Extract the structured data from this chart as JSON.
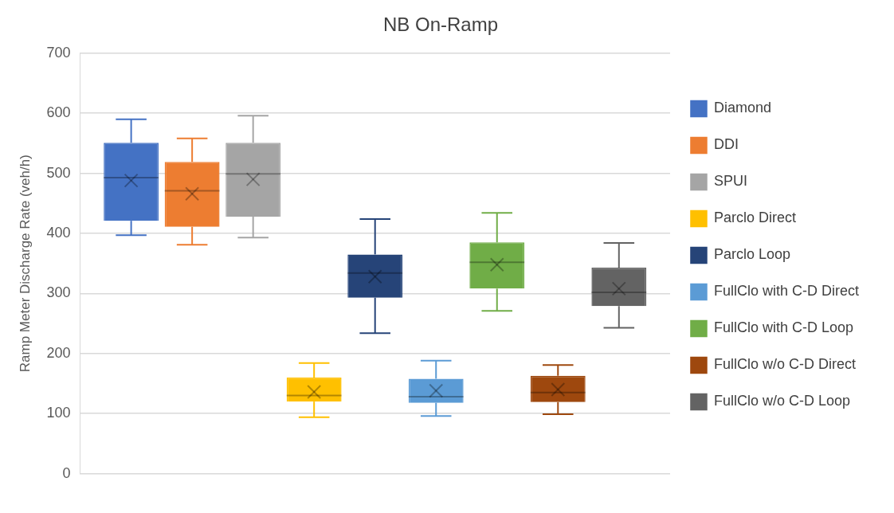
{
  "chart_data": {
    "type": "box",
    "title": "NB On-Ramp",
    "ylabel": "Ramp Meter Discharge Rate (veh/h)",
    "categories": [
      null
    ],
    "ylim": [
      0,
      700
    ],
    "yticks": [
      0,
      100,
      200,
      300,
      400,
      500,
      600,
      700
    ],
    "grid": "y",
    "legend": "right",
    "series": [
      {
        "name": "Diamond",
        "color": "#4472c4",
        "boxes": [
          {
            "low": 397,
            "q1": 421,
            "median": 493,
            "q3": 551,
            "high": 590,
            "mean": 488
          }
        ]
      },
      {
        "name": "DDI",
        "color": "#ed7d31",
        "boxes": [
          {
            "low": 381,
            "q1": 411,
            "median": 471,
            "q3": 519,
            "high": 558,
            "mean": 466
          }
        ]
      },
      {
        "name": "SPUI",
        "color": "#a5a5a5",
        "boxes": [
          {
            "low": 393,
            "q1": 428,
            "median": 499,
            "q3": 551,
            "high": 596,
            "mean": 490
          }
        ]
      },
      {
        "name": "Parclo Direct",
        "color": "#ffc000",
        "boxes": [
          {
            "low": 94,
            "q1": 120,
            "median": 130,
            "q3": 160,
            "high": 184,
            "mean": 136
          }
        ]
      },
      {
        "name": "Parclo Loop",
        "color": "#264478",
        "boxes": [
          {
            "low": 234,
            "q1": 293,
            "median": 334,
            "q3": 365,
            "high": 424,
            "mean": 328
          }
        ]
      },
      {
        "name": "FullClo with C-D Direct",
        "color": "#5b9bd5",
        "boxes": [
          {
            "low": 96,
            "q1": 118,
            "median": 128,
            "q3": 158,
            "high": 188,
            "mean": 138
          }
        ]
      },
      {
        "name": "FullClo with C-D Loop",
        "color": "#70ad47",
        "boxes": [
          {
            "low": 271,
            "q1": 308,
            "median": 352,
            "q3": 385,
            "high": 434,
            "mean": 348
          }
        ]
      },
      {
        "name": "FullClo w/o C-D Direct",
        "color": "#9e480e",
        "boxes": [
          {
            "low": 99,
            "q1": 119,
            "median": 135,
            "q3": 163,
            "high": 181,
            "mean": 140
          }
        ]
      },
      {
        "name": "FullClo w/o C-D Loop",
        "color": "#636363",
        "boxes": [
          {
            "low": 243,
            "q1": 279,
            "median": 302,
            "q3": 343,
            "high": 384,
            "mean": 308
          }
        ]
      }
    ]
  }
}
